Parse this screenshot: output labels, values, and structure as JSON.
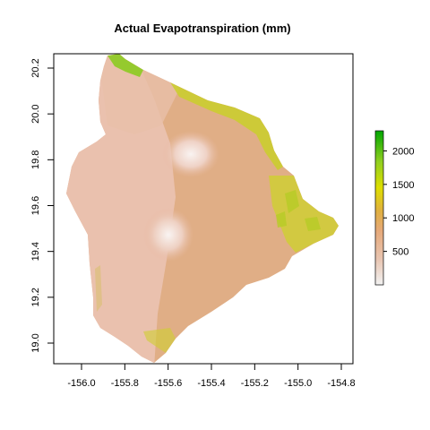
{
  "title": "Actual Evapotranspiration (mm)",
  "axes": {
    "x_ticks": [
      {
        "value": -156.0,
        "label": "-156.0"
      },
      {
        "value": -155.8,
        "label": "-155.8"
      },
      {
        "value": -155.6,
        "label": "-155.6"
      },
      {
        "value": -155.4,
        "label": "-155.4"
      },
      {
        "value": -155.2,
        "label": "-155.2"
      },
      {
        "value": -155.0,
        "label": "-155.0"
      },
      {
        "value": -154.8,
        "label": "-154.8"
      }
    ],
    "y_ticks": [
      {
        "value": 19.0,
        "label": "19.0"
      },
      {
        "value": 19.2,
        "label": "19.2"
      },
      {
        "value": 19.4,
        "label": "19.4"
      },
      {
        "value": 19.6,
        "label": "19.6"
      },
      {
        "value": 19.8,
        "label": "19.8"
      },
      {
        "value": 20.0,
        "label": "20.0"
      },
      {
        "value": 20.2,
        "label": "20.2"
      }
    ]
  },
  "legend": {
    "min": 0,
    "max": 2300,
    "ticks": [
      {
        "value": 500,
        "label": "500"
      },
      {
        "value": 1000,
        "label": "1000"
      },
      {
        "value": 1500,
        "label": "1500"
      },
      {
        "value": 2000,
        "label": "2000"
      }
    ],
    "colors": [
      "#f2f2f2",
      "#e8c4b0",
      "#e6a97a",
      "#e0b040",
      "#dede00",
      "#90cf20",
      "#00a600"
    ]
  },
  "map": {
    "land_fill": "#e0ae86",
    "dry_fill": "#ebc3b2",
    "summit_fill": "#f6ece8",
    "wet_fill_a": "#c9cf2a",
    "wet_fill_b": "#8ccb20"
  }
}
